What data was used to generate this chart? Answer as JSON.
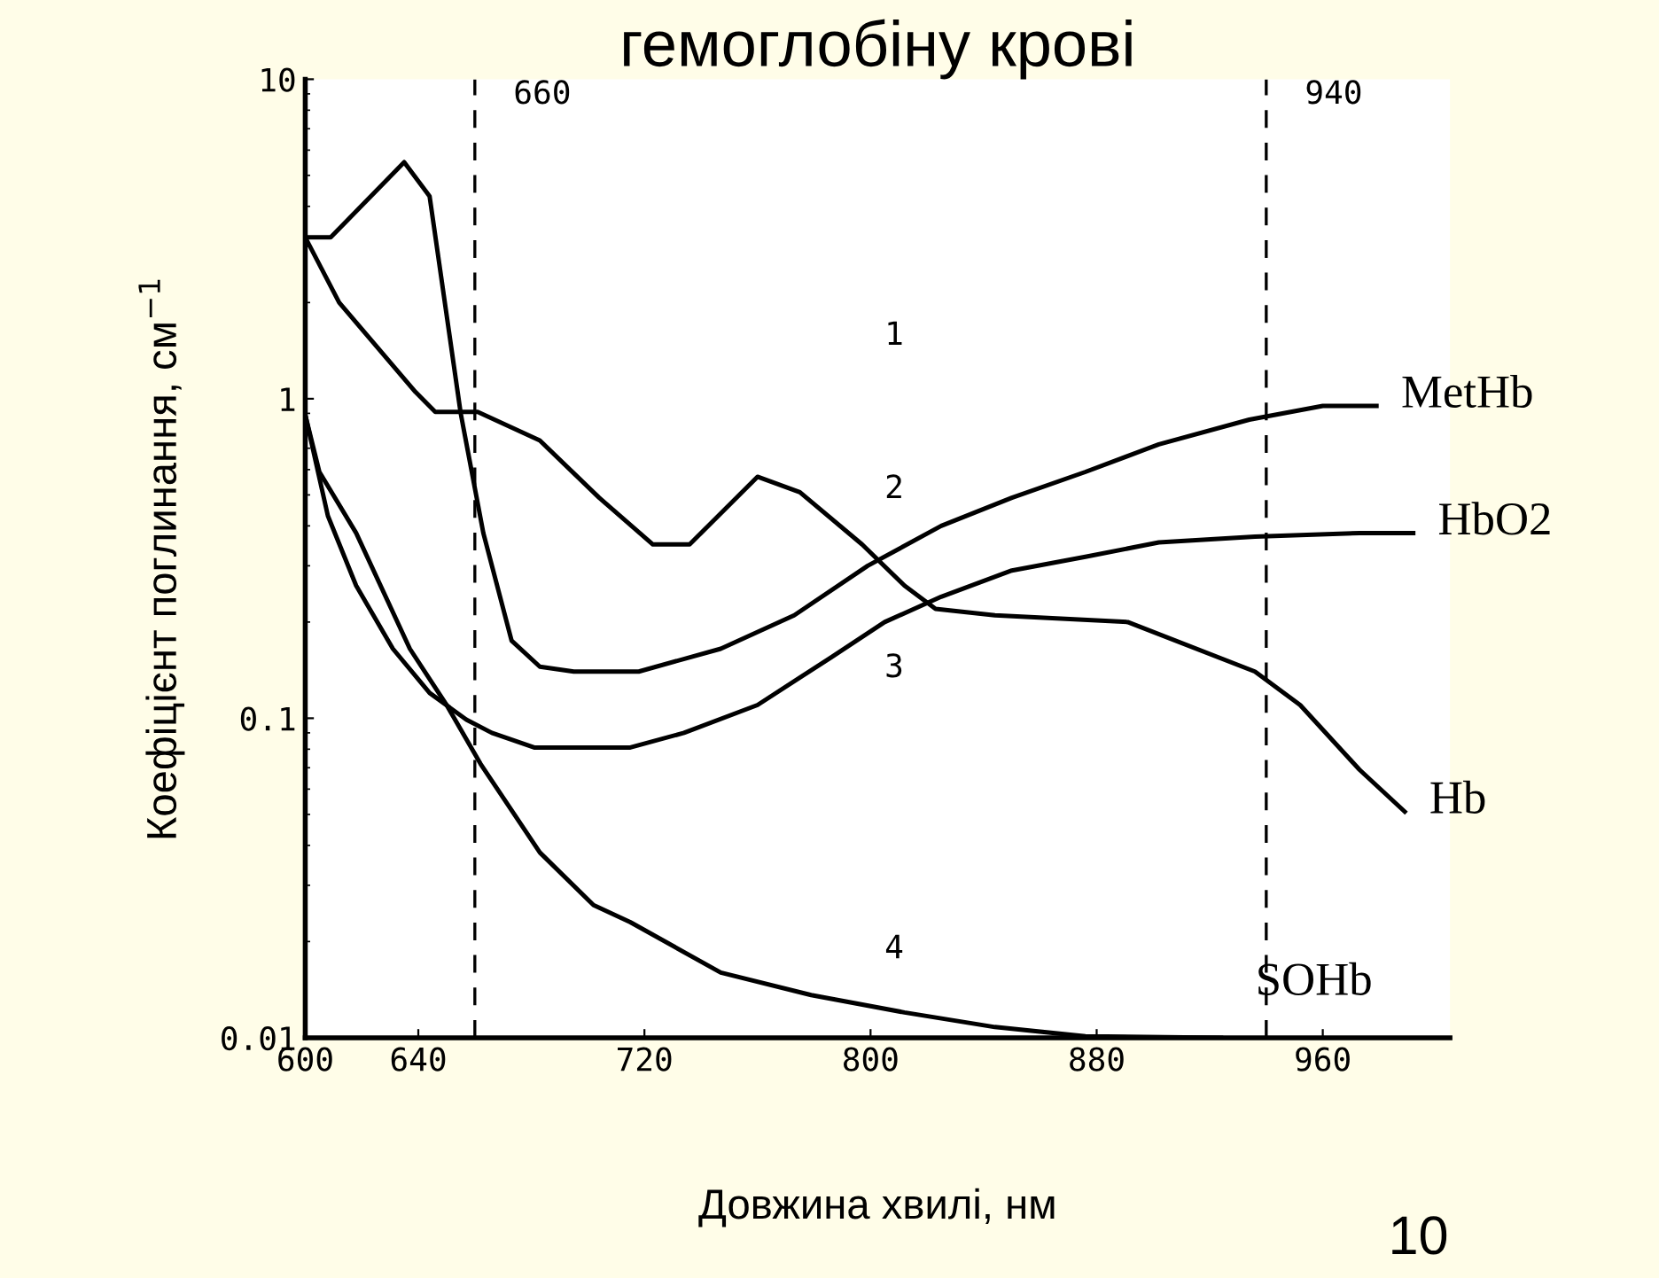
{
  "chart_data": {
    "type": "line",
    "title": "гемоглобіну крові",
    "xlabel": "Довжина хвилі, нм",
    "ylabel": "Коефіцієнт поглинання, см$^{−1}$",
    "log": "y",
    "xlim": [
      600,
      1005
    ],
    "xticks": [
      600,
      640,
      720,
      800,
      880,
      960
    ],
    "ylim": [
      0.01,
      10
    ],
    "yticks": [
      {
        "value": 0.01,
        "label": "0.01"
      },
      {
        "value": 0.1,
        "label": "0.1"
      },
      1,
      10
    ],
    "grid": false,
    "legend": false,
    "marker": "none",
    "line_style": "solid",
    "ref_lines": [
      {
        "axis": "x",
        "value": 660,
        "label": "660",
        "line_style": "dashed",
        "color": "#000000"
      },
      {
        "axis": "x",
        "value": 940,
        "label": "940",
        "line_style": "dashed",
        "color": "#000000"
      }
    ],
    "series": [
      {
        "name": "MetHb",
        "color": "#000000",
        "x": [
          600,
          609,
          635,
          644,
          655,
          663,
          673,
          683,
          695,
          718,
          747,
          773,
          799,
          825,
          850,
          876,
          902,
          934,
          960,
          979
        ],
        "values": [
          3.2,
          3.2,
          5.5,
          4.3,
          0.9,
          0.38,
          0.175,
          0.145,
          0.14,
          0.14,
          0.165,
          0.21,
          0.3,
          0.4,
          0.49,
          0.59,
          0.72,
          0.86,
          0.95,
          0.95
        ]
      },
      {
        "name": "HbO2",
        "color": "#000000",
        "x": [
          600,
          608,
          618,
          631,
          644,
          657,
          666,
          681,
          715,
          734,
          760,
          786,
          805,
          825,
          850,
          876,
          902,
          936,
          973,
          992
        ],
        "values": [
          0.89,
          0.43,
          0.26,
          0.165,
          0.12,
          0.099,
          0.09,
          0.081,
          0.081,
          0.09,
          0.11,
          0.155,
          0.2,
          0.24,
          0.29,
          0.32,
          0.355,
          0.37,
          0.38,
          0.38
        ]
      },
      {
        "name": "Hb",
        "color": "#000000",
        "x": [
          600,
          612,
          639,
          646,
          661,
          683,
          704,
          723,
          736,
          760,
          775,
          797,
          812,
          823,
          844,
          891,
          936,
          952,
          973,
          989
        ],
        "values": [
          3.2,
          2.0,
          1.05,
          0.91,
          0.91,
          0.74,
          0.49,
          0.35,
          0.35,
          0.57,
          0.51,
          0.35,
          0.26,
          0.22,
          0.21,
          0.2,
          0.14,
          0.11,
          0.069,
          0.051
        ]
      },
      {
        "name": "SOHb",
        "color": "#000000",
        "x": [
          600,
          605,
          618,
          637,
          650,
          662,
          683,
          702,
          715,
          747,
          779,
          812,
          844,
          876,
          924
        ],
        "values": [
          0.89,
          0.59,
          0.38,
          0.165,
          0.11,
          0.072,
          0.038,
          0.026,
          0.023,
          0.016,
          0.0136,
          0.012,
          0.0108,
          0.0101,
          0.01
        ]
      }
    ],
    "annotations": [
      "1",
      "2",
      "3",
      "4",
      "10"
    ]
  }
}
